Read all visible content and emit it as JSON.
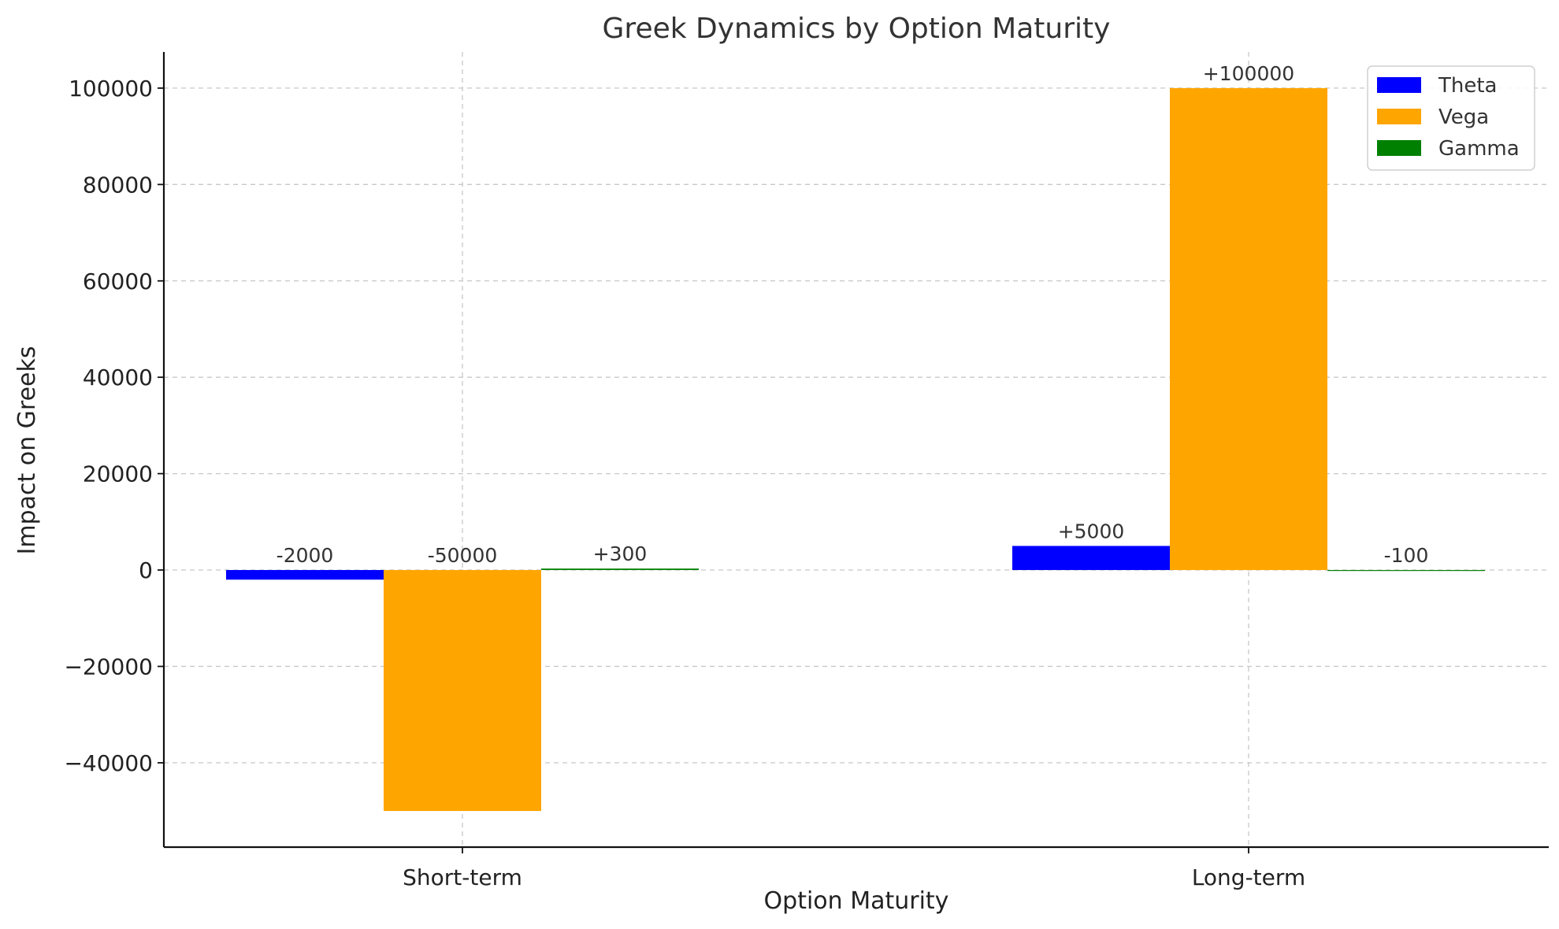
{
  "chart_data": {
    "type": "bar",
    "title": "Greek Dynamics by Option Maturity",
    "xlabel": "Option Maturity",
    "ylabel": "Impact on Greeks",
    "categories": [
      "Short-term",
      "Long-term"
    ],
    "series": [
      {
        "name": "Theta",
        "color": "#0000ff",
        "values": [
          -2000,
          5000
        ],
        "labels": [
          "-2000",
          "+5000"
        ]
      },
      {
        "name": "Vega",
        "color": "#ffa500",
        "values": [
          -50000,
          100000
        ],
        "labels": [
          "-50000",
          "+100000"
        ]
      },
      {
        "name": "Gamma",
        "color": "#008000",
        "values": [
          300,
          -100
        ],
        "labels": [
          "+300",
          "-100"
        ]
      }
    ],
    "ylim": [
      -57500,
      107500
    ],
    "yticks": [
      -40000,
      -20000,
      0,
      20000,
      40000,
      60000,
      80000,
      100000
    ],
    "ytick_labels": [
      "−40000",
      "−20000",
      "0",
      "20000",
      "40000",
      "60000",
      "80000",
      "100000"
    ],
    "grid": true,
    "legend_position": "top-right"
  }
}
